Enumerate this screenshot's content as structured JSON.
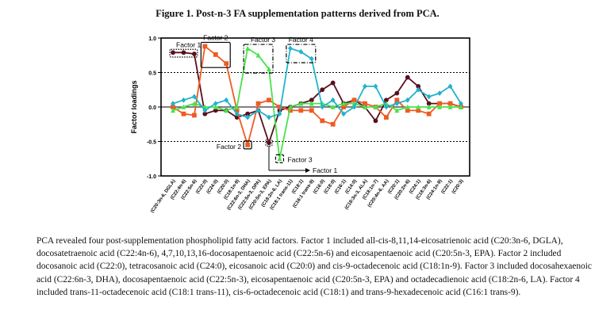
{
  "figure_title": "Figure 1. Post-n-3 FA supplementation patterns derived from PCA.",
  "caption": "PCA revealed four post-supplementation phospholipid fatty acid factors. Factor 1 included all-cis-8,11,14-eicosatrienoic acid (C20:3n-6, DGLA), docosatetraenoic acid (C22:4n-6), 4,7,10,13,16-docosapentaenoic acid (C22:5n-6) and eicosapentaenoic acid (C20:5n-3, EPA). Factor 2 included docosanoic acid (C22:0), tetracosanoic acid (C24:0), eicosanoic acid (C20:0) and cis-9-octadecenoic acid (C18:1n-9). Factor 3 included docosahexaenoic acid (C22:6n-3, DHA), docosapentaenoic acid (C22:5n-3), eicosapentaenoic acid (C20:5n-3, EPA) and octadecadienoic acid (C18:2n-6, LA). Factor 4 included trans-11-octadecenoic acid (C18:1 trans-11), cis-6-octadecenoic acid (C18:1) and trans-9-hexadecenoic acid (C16:1 trans-9).",
  "chart_data": {
    "type": "line",
    "ylabel": "Factor loadings",
    "ylim": [
      -1.0,
      1.0
    ],
    "yticks": [
      "1.0",
      "0.5",
      "0.0",
      "-0.5",
      "-1.0"
    ],
    "reference_lines": [
      0.5,
      -0.5
    ],
    "categories": [
      "(C20:3n-6, DGLA)",
      "(C22:4n-6)",
      "(C22:5n-6)",
      "(C22:0)",
      "(C24:0)",
      "(C20:0)",
      "(C18:1n-9)",
      "(C22:6n-3, DHA)",
      "(C22:5n-3, DPA)",
      "(C20:5n-3, EPA)",
      "(C18:2n-6, LA)",
      "(C18:1 trans-11)",
      "(C18:1)",
      "(C16:1 trans-9)",
      "(C16:0)",
      "(C18:0)",
      "(C16:1)",
      "(C14:0)",
      "(C18:3n-3, ALA)",
      "(C18:1n-7)",
      "(C20:4n-6, AA)",
      "(C20:1)",
      "(C20:2n-6)",
      "(C24:1)",
      "(C18:3n-6)",
      "(C24:1n-9)",
      "(C22:1)",
      "(C20:3)"
    ],
    "series": [
      {
        "color": "#5a0f1e",
        "marker": "circle",
        "values": [
          0.79,
          0.79,
          0.77,
          -0.1,
          -0.05,
          -0.05,
          -0.15,
          -0.1,
          -0.05,
          -0.52,
          -0.05,
          0.0,
          0.05,
          0.1,
          0.25,
          0.35,
          0.05,
          0.1,
          0.0,
          -0.2,
          0.1,
          0.2,
          0.43,
          0.3,
          0.05,
          0.05,
          0.05,
          0.0
        ]
      },
      {
        "color": "#ef5a22",
        "marker": "square",
        "values": [
          0.0,
          -0.1,
          -0.12,
          0.88,
          0.76,
          0.63,
          -0.05,
          -0.55,
          0.05,
          0.1,
          0.0,
          -0.05,
          -0.05,
          -0.05,
          -0.2,
          -0.25,
          0.0,
          0.1,
          0.05,
          0.0,
          -0.15,
          0.1,
          -0.05,
          -0.05,
          -0.1,
          0.05,
          0.05,
          0.0
        ]
      },
      {
        "color": "#49e24b",
        "marker": "triangle",
        "values": [
          -0.05,
          0.0,
          0.05,
          0.0,
          0.0,
          -0.05,
          0.0,
          0.85,
          0.75,
          0.55,
          -0.75,
          0.0,
          0.05,
          0.05,
          0.05,
          0.0,
          0.05,
          0.05,
          0.0,
          0.0,
          0.05,
          -0.05,
          0.0,
          0.0,
          0.0,
          0.0,
          0.0,
          0.0
        ]
      },
      {
        "color": "#22b3cc",
        "marker": "diamond",
        "values": [
          0.05,
          0.1,
          0.15,
          -0.05,
          0.05,
          0.1,
          -0.1,
          -0.15,
          -0.05,
          -0.15,
          -0.1,
          0.85,
          0.8,
          0.7,
          0.0,
          0.1,
          -0.1,
          0.0,
          0.3,
          0.3,
          0.0,
          0.05,
          0.1,
          0.25,
          0.15,
          0.2,
          0.3,
          0.05
        ]
      }
    ],
    "annotations": [
      {
        "text": "Factor 1",
        "target": "series-0 points 1-3 box"
      },
      {
        "text": "Factor 2",
        "target": "series-1 points 4-6 box"
      },
      {
        "text": "Factor 3",
        "target": "series-2 points 8-10 box"
      },
      {
        "text": "Factor 4",
        "target": "series-3 points 12-14 box"
      },
      {
        "text": "Factor 2",
        "target": "series-1 point 8 box"
      },
      {
        "text": "Factor 3",
        "target": "series-2 point 11 box"
      },
      {
        "text": "Factor 1",
        "target": "series-0 point 10 box (arrow)"
      }
    ]
  }
}
